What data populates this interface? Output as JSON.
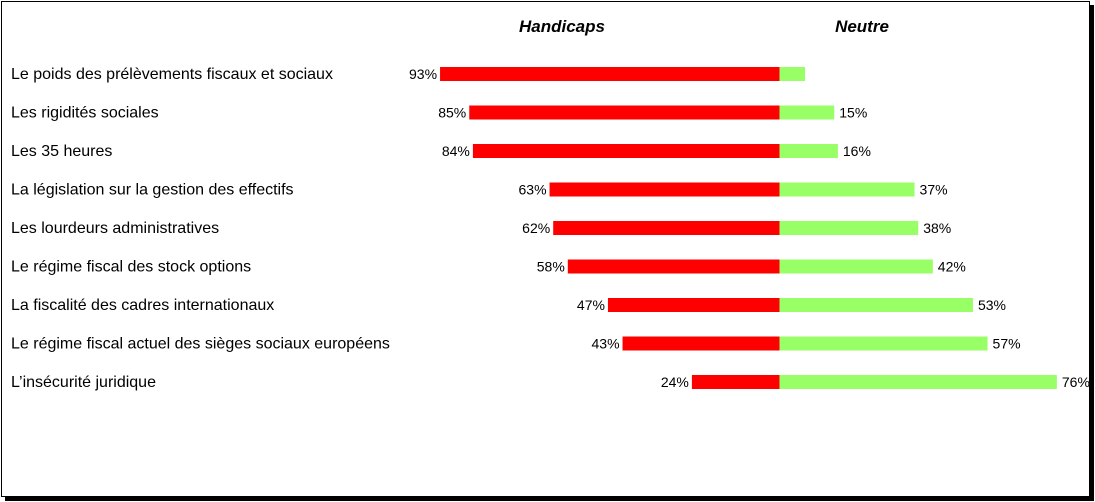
{
  "chart_data": {
    "type": "bar",
    "orientation": "horizontal-diverging",
    "series": [
      {
        "name": "Handicaps",
        "color": "#ff0000",
        "values": [
          93,
          85,
          84,
          63,
          62,
          58,
          47,
          43,
          24
        ],
        "labels": [
          "93%",
          "85%",
          "84%",
          "63%",
          "62%",
          "58%",
          "47%",
          "43%",
          "24%"
        ]
      },
      {
        "name": "Neutre",
        "color": "#99ff66",
        "values": [
          7,
          15,
          16,
          37,
          38,
          42,
          53,
          57,
          76
        ],
        "labels": [
          "",
          "15%",
          "16%",
          "37%",
          "38%",
          "42%",
          "53%",
          "57%",
          "76%"
        ]
      }
    ],
    "categories": [
      "Le poids des prélèvements fiscaux et sociaux",
      "Les rigidités sociales",
      "Les 35 heures",
      "La législation sur la gestion des effectifs",
      "Les lourdeurs administratives",
      "Le régime fiscal des stock options",
      "La fiscalité des cadres internationaux",
      "Le régime fiscal actuel des sièges sociaux européens",
      "L’insécurité juridique"
    ],
    "xlim": [
      0,
      100
    ],
    "legend": "top"
  }
}
